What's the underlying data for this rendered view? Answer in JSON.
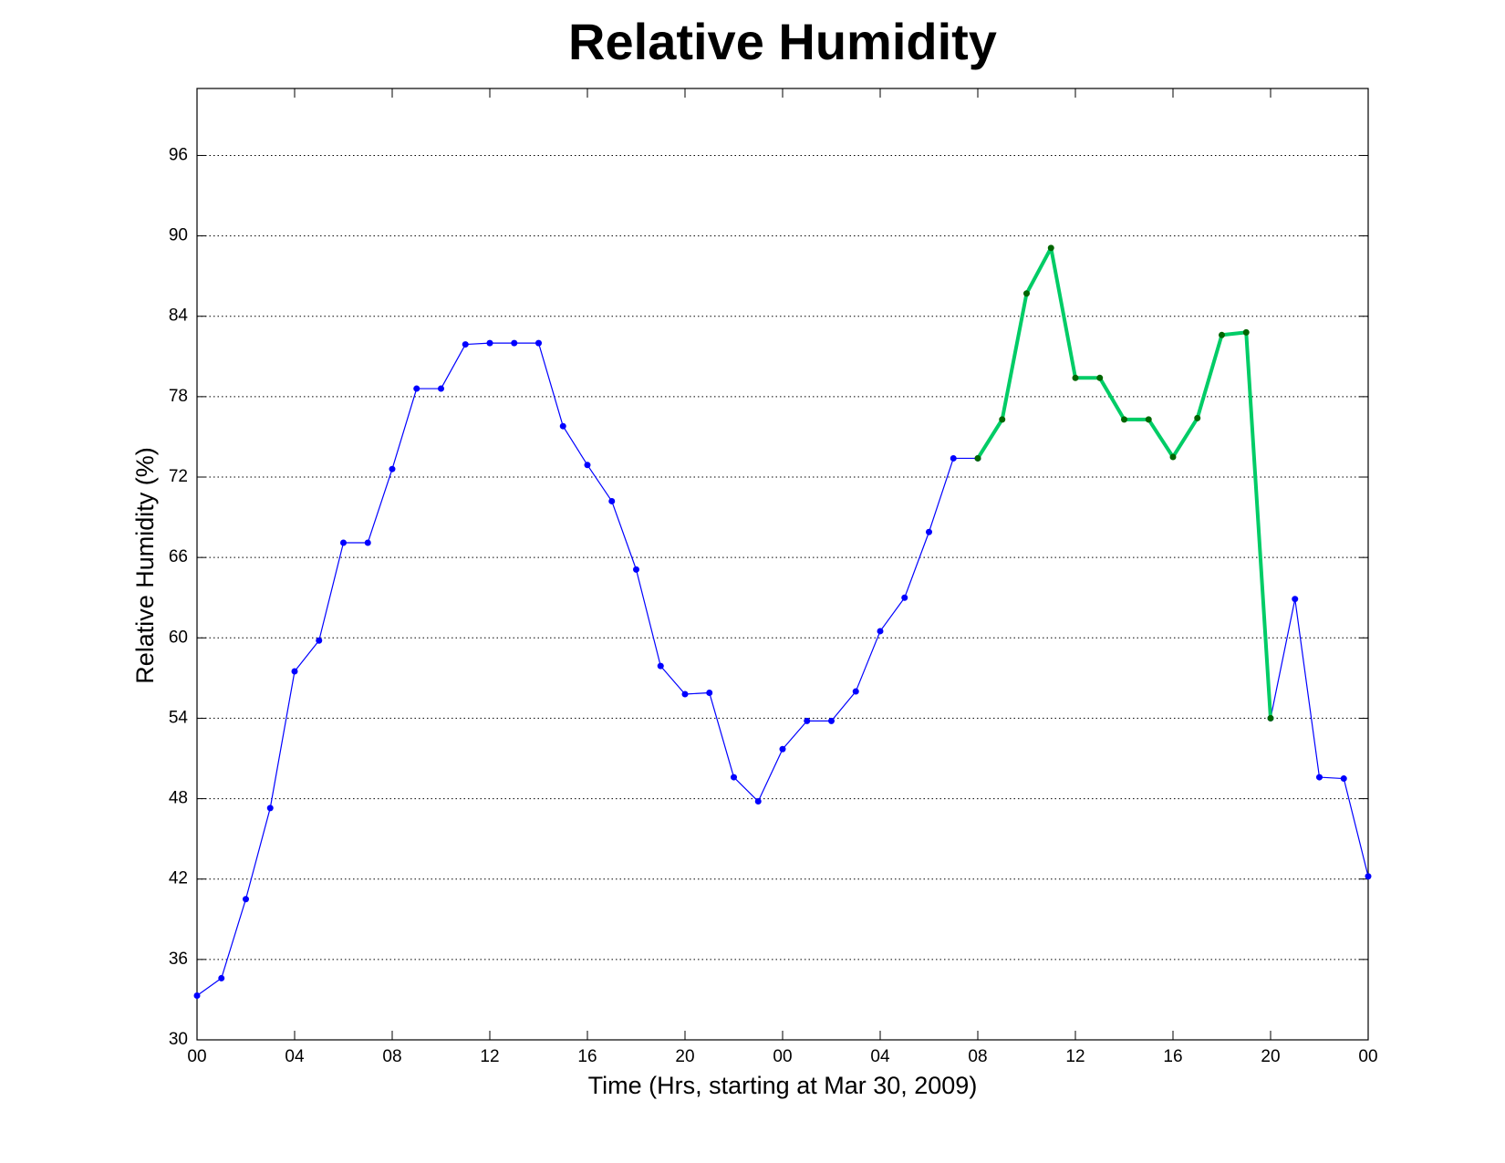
{
  "chart_data": {
    "type": "line",
    "title": "Relative Humidity",
    "x_label": "Time (Hrs, starting at Mar 30, 2009)",
    "y_label": "Relative Humidity (%)",
    "x": [
      0,
      1,
      2,
      3,
      4,
      5,
      6,
      7,
      8,
      9,
      10,
      11,
      12,
      13,
      14,
      15,
      16,
      17,
      18,
      19,
      20,
      21,
      22,
      23,
      24,
      25,
      26,
      27,
      28,
      29,
      30,
      31,
      32,
      33,
      34,
      35,
      36,
      37,
      38,
      39,
      40,
      41,
      42,
      43,
      44,
      45,
      46,
      47,
      48
    ],
    "series": [
      {
        "color": "#0000ff",
        "marker_color": "#0000ff",
        "line_width": 1.2,
        "values": [
          33.3,
          34.6,
          40.5,
          47.3,
          57.5,
          59.8,
          67.1,
          67.1,
          72.6,
          78.6,
          78.6,
          81.9,
          82.0,
          82.0,
          82.0,
          75.8,
          72.9,
          70.2,
          65.1,
          57.9,
          55.8,
          55.9,
          49.6,
          47.8,
          51.7,
          53.8,
          53.8,
          56.0,
          60.5,
          63.0,
          67.9,
          73.4,
          73.4,
          null,
          null,
          null,
          null,
          null,
          null,
          null,
          null,
          null,
          null,
          null,
          54.0,
          62.9,
          49.6,
          49.5,
          42.2
        ]
      },
      {
        "color": "#00cc66",
        "marker_color": "#006600",
        "line_width": 4,
        "values": [
          null,
          null,
          null,
          null,
          null,
          null,
          null,
          null,
          null,
          null,
          null,
          null,
          null,
          null,
          null,
          null,
          null,
          null,
          null,
          null,
          null,
          null,
          null,
          null,
          null,
          null,
          null,
          null,
          null,
          null,
          null,
          null,
          73.4,
          76.3,
          85.7,
          89.1,
          79.4,
          79.4,
          76.3,
          76.3,
          73.5,
          76.4,
          82.6,
          82.8,
          54.0,
          null,
          null,
          null,
          null
        ]
      }
    ],
    "xlim": [
      0,
      48
    ],
    "xticks": [
      {
        "value": 0,
        "label": "00"
      },
      {
        "value": 4,
        "label": "04"
      },
      {
        "value": 8,
        "label": "08"
      },
      12,
      16,
      20,
      {
        "value": 24,
        "label": "00"
      },
      {
        "value": 28,
        "label": "04"
      },
      {
        "value": 32,
        "label": "08"
      },
      {
        "value": 36,
        "label": "12"
      },
      {
        "value": 40,
        "label": "16"
      },
      {
        "value": 44,
        "label": "20"
      },
      {
        "value": 48,
        "label": "00"
      }
    ],
    "ylim": [
      30,
      101
    ],
    "yticks": [
      30,
      36,
      42,
      48,
      54,
      60,
      66,
      72,
      78,
      84,
      90,
      96
    ],
    "grid": "y"
  }
}
